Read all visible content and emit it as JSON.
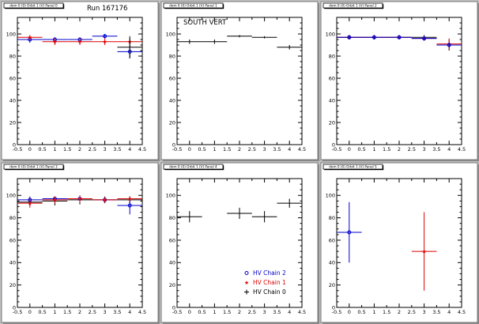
{
  "colors": {
    "background": "#c0c0c0",
    "chain2": "#0000cc",
    "chain1": "#dd0000",
    "chain0": "#000000"
  },
  "chart_data": [
    {
      "type": "scatter",
      "pad": "top-left",
      "title": "dom 0 (0) Orbit 1 (V) Panel 0",
      "annotation": "Run 167176",
      "xlim": [
        -0.5,
        4.5
      ],
      "ylim": [
        0,
        115
      ],
      "xticks": [
        "-0.5",
        "0",
        "0.5",
        "1",
        "1.5",
        "2",
        "2.5",
        "3",
        "3.5",
        "4",
        "4.5"
      ],
      "yticks": [
        "0",
        "20",
        "40",
        "60",
        "80",
        "100"
      ],
      "series": [
        {
          "color": "chain2",
          "marker": "circle",
          "points": [
            {
              "x": 0,
              "y": 95,
              "xerr": 0.5,
              "yerr": 3
            },
            {
              "x": 1,
              "y": 95,
              "xerr": 0.5,
              "yerr": 2
            },
            {
              "x": 2,
              "y": 95,
              "xerr": 0.5,
              "yerr": 2
            },
            {
              "x": 3,
              "y": 98,
              "xerr": 0.5,
              "yerr": 2
            },
            {
              "x": 4,
              "y": 84,
              "xerr": 0.5,
              "yerr": 6
            }
          ]
        },
        {
          "color": "chain1",
          "marker": "star",
          "points": [
            {
              "x": 0,
              "y": 97,
              "xerr": 0.5,
              "yerr": 2
            },
            {
              "x": 1,
              "y": 93,
              "xerr": 0.5,
              "yerr": 3
            },
            {
              "x": 2,
              "y": 93,
              "xerr": 0.5,
              "yerr": 3
            },
            {
              "x": 3,
              "y": 93,
              "xerr": 0.5,
              "yerr": 3
            },
            {
              "x": 4,
              "y": 93,
              "xerr": 0.5,
              "yerr": 3
            }
          ]
        },
        {
          "color": "chain0",
          "marker": "none",
          "points": [
            {
              "x": 4,
              "y": 88,
              "xerr": 0.5,
              "yerr": 10
            }
          ]
        }
      ]
    },
    {
      "type": "scatter",
      "pad": "top-middle",
      "title": "dom 0 (0) Orbit 1 (V) Panel 1",
      "annotation": "SOUTH VERT",
      "xlim": [
        -0.5,
        4.5
      ],
      "ylim": [
        0,
        115
      ],
      "xticks": [
        "-0.5",
        "0",
        "0.5",
        "1",
        "1.5",
        "2",
        "2.5",
        "3",
        "3.5",
        "4",
        "4.5"
      ],
      "yticks": [
        "0",
        "20",
        "40",
        "60",
        "80",
        "100"
      ],
      "series": [
        {
          "color": "chain0",
          "marker": "none",
          "points": [
            {
              "x": 0,
              "y": 93,
              "xerr": 0.5,
              "yerr": 2
            },
            {
              "x": 1,
              "y": 93,
              "xerr": 0.5,
              "yerr": 2
            },
            {
              "x": 2,
              "y": 98,
              "xerr": 0.5,
              "yerr": 1
            },
            {
              "x": 3,
              "y": 97,
              "xerr": 0.5,
              "yerr": 1
            },
            {
              "x": 4,
              "y": 88,
              "xerr": 0.5,
              "yerr": 2
            }
          ]
        }
      ]
    },
    {
      "type": "scatter",
      "pad": "top-right",
      "title": "dom 0 (0) Orbit 1 (V) Panel 2",
      "annotation": "",
      "xlim": [
        -0.5,
        4.5
      ],
      "ylim": [
        0,
        115
      ],
      "xticks": [
        "-0.5",
        "0",
        "0.5",
        "1",
        "1.5",
        "2",
        "2.5",
        "3",
        "3.5",
        "4",
        "4.5"
      ],
      "yticks": [
        "0",
        "20",
        "40",
        "60",
        "80",
        "100"
      ],
      "series": [
        {
          "color": "chain0",
          "marker": "none",
          "points": [
            {
              "x": 0,
              "y": 97,
              "xerr": 0.5,
              "yerr": 2
            },
            {
              "x": 1,
              "y": 97,
              "xerr": 0.5,
              "yerr": 2
            },
            {
              "x": 2,
              "y": 97,
              "xerr": 0.5,
              "yerr": 2
            },
            {
              "x": 3,
              "y": 97,
              "xerr": 0.5,
              "yerr": 2
            },
            {
              "x": 4,
              "y": 90,
              "xerr": 0.5,
              "yerr": 5
            }
          ]
        },
        {
          "color": "chain1",
          "marker": "star",
          "points": [
            {
              "x": 0,
              "y": 97,
              "xerr": 0.5,
              "yerr": 2
            },
            {
              "x": 1,
              "y": 97,
              "xerr": 0.5,
              "yerr": 2
            },
            {
              "x": 2,
              "y": 97,
              "xerr": 0.5,
              "yerr": 2
            },
            {
              "x": 3,
              "y": 96,
              "xerr": 0.5,
              "yerr": 2
            },
            {
              "x": 4,
              "y": 91,
              "xerr": 0.5,
              "yerr": 5
            }
          ]
        },
        {
          "color": "chain2",
          "marker": "circle",
          "points": [
            {
              "x": 0,
              "y": 97,
              "xerr": 0.5,
              "yerr": 2
            },
            {
              "x": 1,
              "y": 97,
              "xerr": 0.5,
              "yerr": 2
            },
            {
              "x": 2,
              "y": 97,
              "xerr": 0.5,
              "yerr": 2
            },
            {
              "x": 3,
              "y": 96,
              "xerr": 0.5,
              "yerr": 2
            },
            {
              "x": 4,
              "y": 90,
              "xerr": 0.5,
              "yerr": 2
            }
          ]
        }
      ]
    },
    {
      "type": "scatter",
      "pad": "bottom-left",
      "title": "dom 0 (0) Orbit 1 (V) Panel 3",
      "annotation": "",
      "xlim": [
        -0.5,
        4.5
      ],
      "ylim": [
        0,
        115
      ],
      "xticks": [
        "-0.5",
        "0",
        "0.5",
        "1",
        "1.5",
        "2",
        "2.5",
        "3",
        "3.5",
        "4",
        "4.5"
      ],
      "yticks": [
        "0",
        "20",
        "40",
        "60",
        "80",
        "100"
      ],
      "series": [
        {
          "color": "chain0",
          "marker": "none",
          "points": [
            {
              "x": 0,
              "y": 94,
              "xerr": 0.5,
              "yerr": 3
            },
            {
              "x": 1,
              "y": 95,
              "xerr": 0.5,
              "yerr": 4
            },
            {
              "x": 2,
              "y": 96,
              "xerr": 0.5,
              "yerr": 4
            },
            {
              "x": 3,
              "y": 96,
              "xerr": 0.5,
              "yerr": 3
            },
            {
              "x": 4,
              "y": 96,
              "xerr": 0.5,
              "yerr": 3
            }
          ]
        },
        {
          "color": "chain2",
          "marker": "circle",
          "points": [
            {
              "x": 0,
              "y": 96,
              "xerr": 0.5,
              "yerr": 3
            },
            {
              "x": 1,
              "y": 97,
              "xerr": 0.5,
              "yerr": 2
            },
            {
              "x": 2,
              "y": 97,
              "xerr": 0.5,
              "yerr": 2
            },
            {
              "x": 3,
              "y": 96,
              "xerr": 0.5,
              "yerr": 2
            },
            {
              "x": 4,
              "y": 91,
              "xerr": 0.5,
              "yerr": 8
            }
          ]
        },
        {
          "color": "chain1",
          "marker": "star",
          "points": [
            {
              "x": 0,
              "y": 93,
              "xerr": 0.5,
              "yerr": 4
            },
            {
              "x": 1,
              "y": 96,
              "xerr": 0.5,
              "yerr": 3
            },
            {
              "x": 2,
              "y": 97,
              "xerr": 0.5,
              "yerr": 3
            },
            {
              "x": 3,
              "y": 96,
              "xerr": 0.5,
              "yerr": 2
            },
            {
              "x": 4,
              "y": 97,
              "xerr": 0.5,
              "yerr": 2
            }
          ]
        }
      ]
    },
    {
      "type": "scatter",
      "pad": "bottom-middle",
      "title": "dom 0 (0) Orbit 1 (V) Panel 4",
      "annotation": "",
      "xlim": [
        -0.5,
        4.5
      ],
      "ylim": [
        0,
        115
      ],
      "xticks": [
        "-0.5",
        "0",
        "0.5",
        "1",
        "1.5",
        "2",
        "2.5",
        "3",
        "3.5",
        "4",
        "4.5"
      ],
      "yticks": [
        "0",
        "20",
        "40",
        "60",
        "80",
        "100"
      ],
      "legend": {
        "position": "bottom-right",
        "entries": [
          {
            "label": "HV Chain 2",
            "color": "chain2",
            "marker": "circle"
          },
          {
            "label": "HV Chain 1",
            "color": "chain1",
            "marker": "star"
          },
          {
            "label": "HV Chain 0",
            "color": "chain0",
            "marker": "plus"
          }
        ]
      },
      "series": [
        {
          "color": "chain0",
          "marker": "none",
          "points": [
            {
              "x": 0,
              "y": 81,
              "xerr": 0.5,
              "yerr": 5
            },
            {
              "x": 2,
              "y": 84,
              "xerr": 0.5,
              "yerr": 5
            },
            {
              "x": 3,
              "y": 81,
              "xerr": 0.5,
              "yerr": 5
            },
            {
              "x": 4,
              "y": 93,
              "xerr": 0.5,
              "yerr": 4
            }
          ]
        }
      ]
    },
    {
      "type": "scatter",
      "pad": "bottom-right",
      "title": "dom 0 (0) Orbit 1 (V) Panel 5",
      "annotation": "",
      "xlim": [
        -0.5,
        4.5
      ],
      "ylim": [
        0,
        115
      ],
      "xticks": [
        "-0.5",
        "0",
        "0.5",
        "1",
        "1.5",
        "2",
        "2.5",
        "3",
        "3.5",
        "4",
        "4.5"
      ],
      "yticks": [
        "0",
        "20",
        "40",
        "60",
        "80",
        "100"
      ],
      "series": [
        {
          "color": "chain2",
          "marker": "circle",
          "points": [
            {
              "x": 0,
              "y": 67,
              "xerr": 0.5,
              "yerr": 27
            }
          ]
        },
        {
          "color": "chain1",
          "marker": "star",
          "points": [
            {
              "x": 3,
              "y": 50,
              "xerr": 0.5,
              "yerr": 35
            }
          ]
        }
      ]
    }
  ]
}
